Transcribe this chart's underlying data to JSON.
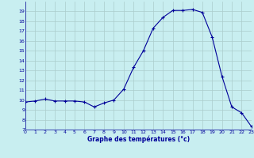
{
  "hours": [
    0,
    1,
    2,
    3,
    4,
    5,
    6,
    7,
    8,
    9,
    10,
    11,
    12,
    13,
    14,
    15,
    16,
    17,
    18,
    19,
    20,
    21,
    22,
    23
  ],
  "temperatures": [
    9.8,
    9.9,
    10.1,
    9.9,
    9.9,
    9.9,
    9.8,
    9.3,
    9.7,
    10.0,
    11.1,
    13.3,
    15.0,
    17.3,
    18.4,
    19.1,
    19.1,
    19.2,
    18.9,
    16.4,
    12.4,
    9.3,
    8.7,
    7.3
  ],
  "line_color": "#000099",
  "marker": "+",
  "bg_color": "#c8eef0",
  "grid_color": "#aacccc",
  "xlabel": "Graphe des températures (°c)",
  "xlabel_color": "#000099",
  "tick_color": "#000099",
  "ylim": [
    7,
    20
  ],
  "yticks": [
    7,
    8,
    9,
    10,
    11,
    12,
    13,
    14,
    15,
    16,
    17,
    18,
    19
  ],
  "xlim": [
    0,
    23
  ],
  "xticks": [
    0,
    1,
    2,
    3,
    4,
    5,
    6,
    7,
    8,
    9,
    10,
    11,
    12,
    13,
    14,
    15,
    16,
    17,
    18,
    19,
    20,
    21,
    22,
    23
  ]
}
